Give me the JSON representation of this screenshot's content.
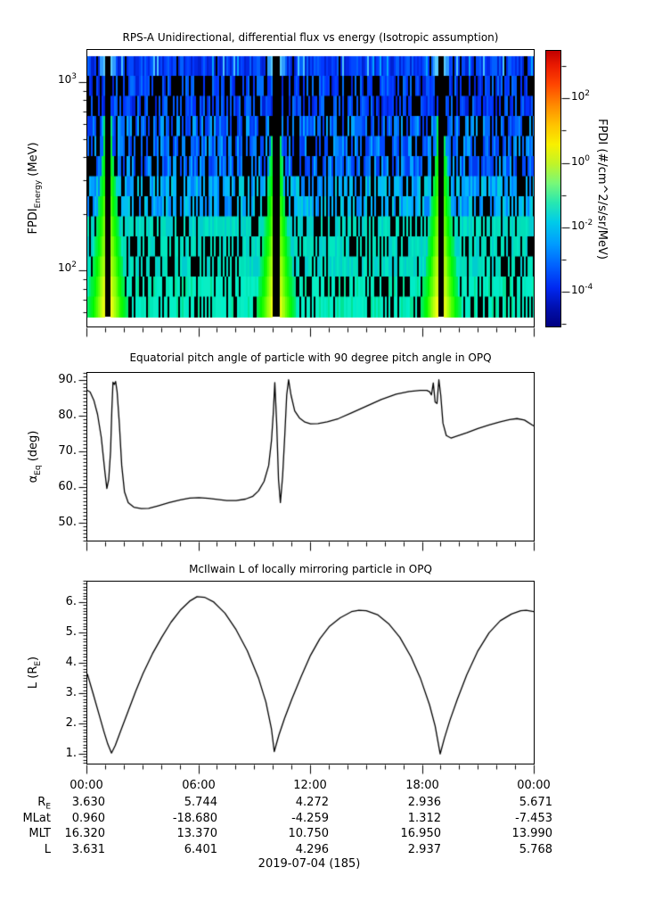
{
  "x_axis": {
    "tick_labels": [
      "00:00",
      "06:00",
      "12:00",
      "18:00",
      "00:00"
    ],
    "tick_hours": [
      0,
      6,
      12,
      18,
      24
    ],
    "minor_step_hours": 1,
    "date_label": "2019-07-04 (185)"
  },
  "ephemeris_rows": [
    {
      "label": {
        "pre": "R",
        "sub": "E"
      },
      "values": [
        "3.630",
        "5.744",
        "4.272",
        "2.936",
        "5.671"
      ]
    },
    {
      "label": {
        "pre": "MLat",
        "sub": ""
      },
      "values": [
        "0.960",
        "-18.680",
        "-4.259",
        "1.312",
        "-7.453"
      ]
    },
    {
      "label": {
        "pre": "MLT",
        "sub": ""
      },
      "values": [
        "16.320",
        "13.370",
        "10.750",
        "16.950",
        "13.990"
      ]
    },
    {
      "label": {
        "pre": "L",
        "sub": ""
      },
      "values": [
        "3.631",
        "6.401",
        "4.296",
        "2.937",
        "5.768"
      ]
    }
  ],
  "chart_data": [
    {
      "id": "spectrogram",
      "type": "heatmap",
      "title": "RPS-A Unidirectional, differential flux vs energy (Isotropic assumption)",
      "ylabel": {
        "pre": "FPDI",
        "sub": "Energy",
        "post": " (MeV)"
      },
      "x_range_hours": [
        0,
        24
      ],
      "y_scale": "log",
      "y_range_mev": [
        49.9,
        1497
      ],
      "y_major_ticks": [
        {
          "value": 1000,
          "exp": "3"
        },
        {
          "value": 100,
          "exp": "2"
        }
      ],
      "y_minor_ticks_mev": [
        60,
        70,
        80,
        90,
        200,
        300,
        400,
        500,
        600,
        700,
        800,
        900
      ],
      "data_energy_extent_mev": [
        58,
        1320
      ],
      "perigee_gap_hours": [
        1.1,
        10.15,
        19.0
      ],
      "gap_halfwidth_hours": 0.16,
      "plume_halfwidth_hours_top": 0.1,
      "plume_halfwidth_hours_bottom": 1.15,
      "seed": 20190704,
      "background_black_fraction": [
        0.05,
        0.42,
        0.38,
        0.34,
        0.24
      ],
      "palette_top_band": [
        "#0028e6",
        "#0038ff",
        "#0048ff",
        "#0060ff",
        "#0020d0",
        "#00a8ff",
        "#48c8ff"
      ],
      "palette_upper": [
        "#0030ff",
        "#0040ff",
        "#0058ff",
        "#0070ff",
        "#0020d8"
      ],
      "palette_mid_upper": [
        "#0048ff",
        "#0068ff",
        "#0088ff",
        "#00a8ff",
        "#0038f0"
      ],
      "palette_mid_lower": [
        "#00a0ff",
        "#00c0f0",
        "#00d0d8",
        "#0080ff",
        "#00b8ff"
      ],
      "palette_lower": [
        "#00d8c0",
        "#00e0b8",
        "#00ccd0",
        "#00e8c0"
      ],
      "palette_bottom": [
        "#00ecc8",
        "#00f0c8",
        "#00e8b8",
        "#08eec4",
        "#00e494"
      ],
      "colorbar": {
        "label": "FPDI (#/cm^2/s/sr/MeV)",
        "log_range_top_to_bottom": [
          3.5,
          -5.1
        ],
        "major_tick_exps": [
          "2",
          "0",
          "-2",
          "-4"
        ],
        "minor_tick_exps": [
          "3",
          "1",
          "-1",
          "-3",
          "-5"
        ],
        "gradient_top_to_bottom": [
          "#c00000 0%",
          "#e81800 5%",
          "#ff4400 12%",
          "#ff8c00 20%",
          "#ffc400 27%",
          "#f8f000 34%",
          "#c0f428 41%",
          "#78f878 48%",
          "#28e8b0 55%",
          "#00cce8 62%",
          "#009cff 70%",
          "#0060ff 78%",
          "#0028f0 86%",
          "#0010b0 93%",
          "#000080 100%"
        ]
      }
    },
    {
      "id": "pitch_angle",
      "type": "line",
      "title": "Equatorial pitch angle of particle with 90 degree pitch angle in OPQ",
      "ylabel": {
        "pre": "α",
        "sub": "Eq",
        "post": " (deg)"
      },
      "line_color": "#000000",
      "y_range": [
        44.75,
        92.25
      ],
      "y_major_ticks": [
        {
          "value": 90,
          "label": "90."
        },
        {
          "value": 80,
          "label": "80."
        },
        {
          "value": 70,
          "label": "70."
        },
        {
          "value": 60,
          "label": "60."
        },
        {
          "value": 50,
          "label": "50."
        }
      ],
      "y_minor_step": 1,
      "x": [
        0,
        0.15,
        0.35,
        0.55,
        0.75,
        0.95,
        1.05,
        1.15,
        1.25,
        1.32,
        1.38,
        1.45,
        1.52,
        1.6,
        1.72,
        1.85,
        2.0,
        2.2,
        2.5,
        2.9,
        3.3,
        3.8,
        4.4,
        5.0,
        5.5,
        6.0,
        6.5,
        7.0,
        7.5,
        8.0,
        8.5,
        8.9,
        9.2,
        9.5,
        9.75,
        9.9,
        10.0,
        10.08,
        10.18,
        10.28,
        10.38,
        10.5,
        10.62,
        10.72,
        10.82,
        10.95,
        11.15,
        11.4,
        11.7,
        12.0,
        12.4,
        12.9,
        13.5,
        14.2,
        15.0,
        15.8,
        16.6,
        17.3,
        17.9,
        18.25,
        18.4,
        18.5,
        18.6,
        18.7,
        18.8,
        18.9,
        19.0,
        19.12,
        19.3,
        19.55,
        19.9,
        20.4,
        21.0,
        21.6,
        22.2,
        22.7,
        23.1,
        23.5,
        24
      ],
      "y": [
        87.3,
        86.8,
        84.5,
        80.5,
        74,
        64,
        59.5,
        62,
        70,
        82,
        89.6,
        89.0,
        89.8,
        87,
        78,
        66,
        58.5,
        55.5,
        54.2,
        53.8,
        53.9,
        54.6,
        55.5,
        56.3,
        56.8,
        56.9,
        56.7,
        56.4,
        56.1,
        56.1,
        56.5,
        57.3,
        58.8,
        61.5,
        66,
        73,
        81,
        89.5,
        78,
        62,
        55.5,
        63,
        75,
        86,
        90.3,
        86,
        81.5,
        79.5,
        78.3,
        77.8,
        77.9,
        78.4,
        79.3,
        80.9,
        82.8,
        84.7,
        86.2,
        87.0,
        87.3,
        87.3,
        86.9,
        86.0,
        89.4,
        84.0,
        83.6,
        90.3,
        86.0,
        78,
        74.5,
        73.8,
        74.4,
        75.3,
        76.5,
        77.5,
        78.4,
        79.0,
        79.3,
        78.9,
        77.2
      ]
    },
    {
      "id": "mcilwain_l",
      "type": "line",
      "title": "McIlwain L of locally mirroring particle in OPQ",
      "ylabel": {
        "pre": "L (R",
        "sub": "E",
        "post": ")"
      },
      "line_color": "#000000",
      "y_range": [
        0.65,
        6.7
      ],
      "y_major_ticks": [
        {
          "value": 6,
          "label": "6."
        },
        {
          "value": 5,
          "label": "5."
        },
        {
          "value": 4,
          "label": "4."
        },
        {
          "value": 3,
          "label": "3."
        },
        {
          "value": 2,
          "label": "2."
        },
        {
          "value": 1,
          "label": "1."
        }
      ],
      "y_minor_step": 0.1,
      "x": [
        0,
        0.3,
        0.6,
        0.9,
        1.1,
        1.3,
        1.5,
        1.8,
        2.2,
        2.6,
        3.0,
        3.5,
        4.0,
        4.5,
        5.0,
        5.5,
        5.9,
        6.3,
        6.8,
        7.4,
        8.0,
        8.6,
        9.2,
        9.6,
        9.9,
        10.05,
        10.3,
        10.6,
        11.0,
        11.5,
        12.0,
        12.5,
        13.0,
        13.6,
        14.2,
        14.6,
        15.0,
        15.6,
        16.2,
        16.8,
        17.4,
        17.9,
        18.4,
        18.7,
        18.97,
        19.2,
        19.5,
        19.9,
        20.4,
        21.0,
        21.6,
        22.2,
        22.8,
        23.3,
        23.6,
        24
      ],
      "y": [
        3.63,
        3.0,
        2.35,
        1.7,
        1.3,
        1.0,
        1.25,
        1.75,
        2.4,
        3.05,
        3.65,
        4.3,
        4.85,
        5.35,
        5.75,
        6.05,
        6.2,
        6.18,
        6.02,
        5.65,
        5.1,
        4.4,
        3.5,
        2.7,
        1.8,
        1.05,
        1.6,
        2.15,
        2.8,
        3.55,
        4.25,
        4.8,
        5.2,
        5.5,
        5.7,
        5.75,
        5.73,
        5.6,
        5.3,
        4.85,
        4.2,
        3.5,
        2.6,
        1.9,
        0.97,
        1.5,
        2.1,
        2.8,
        3.6,
        4.4,
        5.0,
        5.4,
        5.62,
        5.73,
        5.75,
        5.7
      ]
    }
  ]
}
